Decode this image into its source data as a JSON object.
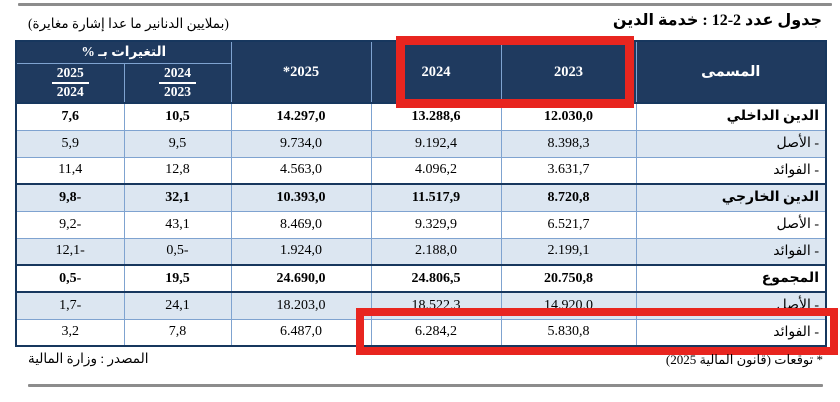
{
  "colors": {
    "header_bg": "#1F3A5F",
    "shaded_row_bg": "#DCE6F1",
    "grid_border": "#7FA3D0",
    "strong_border": "#17375E",
    "highlight_red": "#E8251F",
    "rule_gray": "#8C8C8C"
  },
  "page": {
    "title": "جدول عدد 2-12 : خدمة الدين",
    "unit_note": "(بملايين الدنانير ما عدا إشارة مغايرة)",
    "footnote": "* توقعات (قانون المالية 2025)",
    "source": "المصدر : وزارة المالية"
  },
  "table": {
    "headers": {
      "label": "المسمى",
      "year_2023": "2023",
      "year_2024": "2024",
      "year_2025": "*2025",
      "changes_group": "التغيرات بـ %",
      "change_2024_2023": {
        "numerator": "2024",
        "denominator": "2023"
      },
      "change_2025_2024": {
        "numerator": "2025",
        "denominator": "2024"
      }
    },
    "rows": [
      {
        "label": "الدين الداخلي",
        "v2023": "12.030,0",
        "v2024": "13.288,6",
        "v2025": "14.297,0",
        "ch_24_23": "10,5",
        "ch_25_24": "7,6",
        "bold": true,
        "shaded": false
      },
      {
        "label": "- الأصل",
        "v2023": "8.398,3",
        "v2024": "9.192,4",
        "v2025": "9.734,0",
        "ch_24_23": "9,5",
        "ch_25_24": "5,9",
        "bold": false,
        "shaded": true
      },
      {
        "label": "- الفوائد",
        "v2023": "3.631,7",
        "v2024": "4.096,2",
        "v2025": "4.563,0",
        "ch_24_23": "12,8",
        "ch_25_24": "11,4",
        "bold": false,
        "shaded": false
      },
      {
        "label": "الدين الخارجي",
        "v2023": "8.720,8",
        "v2024": "11.517,9",
        "v2025": "10.393,0",
        "ch_24_23": "32,1",
        "ch_25_24": "9,8-",
        "bold": true,
        "shaded": true
      },
      {
        "label": "- الأصل",
        "v2023": "6.521,7",
        "v2024": "9.329,9",
        "v2025": "8.469,0",
        "ch_24_23": "43,1",
        "ch_25_24": "9,2-",
        "bold": false,
        "shaded": false
      },
      {
        "label": "- الفوائد",
        "v2023": "2.199,1",
        "v2024": "2.188,0",
        "v2025": "1.924,0",
        "ch_24_23": "0,5-",
        "ch_25_24": "12,1-",
        "bold": false,
        "shaded": true
      },
      {
        "label": "المجموع",
        "v2023": "20.750,8",
        "v2024": "24.806,5",
        "v2025": "24.690,0",
        "ch_24_23": "19,5",
        "ch_25_24": "0,5-",
        "bold": true,
        "shaded": false
      },
      {
        "label": "- الأصل",
        "v2023": "14.920,0",
        "v2024": "18.522,3",
        "v2025": "18.203,0",
        "ch_24_23": "24,1",
        "ch_25_24": "1,7-",
        "bold": false,
        "shaded": true
      },
      {
        "label": "- الفوائد",
        "v2023": "5.830,8",
        "v2024": "6.284,2",
        "v2025": "6.487,0",
        "ch_24_23": "7,8",
        "ch_25_24": "3,2",
        "bold": false,
        "shaded": false
      }
    ]
  }
}
